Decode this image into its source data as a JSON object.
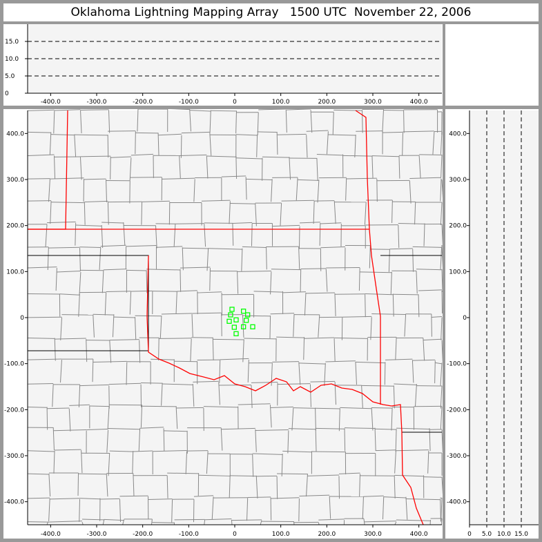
{
  "title": "Oklahoma Lightning Mapping Array   1500 UTC  November 22, 2006",
  "colors": {
    "state_border": "#ff0000",
    "county_border": "#888888",
    "source_marker": "#00ff00",
    "plot_bg": "#f4f4f4",
    "frame": "#999999"
  },
  "chart_data": [
    {
      "panel": "plan-view",
      "type": "scatter",
      "xlim": [
        -450,
        450
      ],
      "ylim": [
        -450,
        450
      ],
      "x_ticks": [
        "-400.0",
        "-300.0",
        "-200.0",
        "-100.0",
        "0",
        "100.0",
        "200.0",
        "300.0",
        "400.0"
      ],
      "y_ticks": [
        "400.0",
        "300.0",
        "200.0",
        "100.0",
        "0",
        "-100.0",
        "-200.0",
        "-300.0",
        "-400.0"
      ],
      "points": [
        {
          "x": -6,
          "y": 18
        },
        {
          "x": -9,
          "y": 6
        },
        {
          "x": 19,
          "y": 14
        },
        {
          "x": 28,
          "y": 6
        },
        {
          "x": -12,
          "y": -8
        },
        {
          "x": 3,
          "y": -5
        },
        {
          "x": 25,
          "y": -6
        },
        {
          "x": -1,
          "y": -21
        },
        {
          "x": 19,
          "y": -20
        },
        {
          "x": 39,
          "y": -20
        },
        {
          "x": 3,
          "y": -35
        }
      ]
    },
    {
      "panel": "east-west-altitude",
      "type": "scatter",
      "xlim": [
        -450,
        450
      ],
      "ylim": [
        0,
        20
      ],
      "x_ticks": [
        "-400.0",
        "-300.0",
        "-200.0",
        "-100.0",
        "0",
        "100.0",
        "200.0",
        "300.0",
        "400.0"
      ],
      "y_ticks": [
        "15.0",
        "10.0",
        "5.0",
        "0"
      ],
      "points": []
    },
    {
      "panel": "altitude-north-south",
      "type": "scatter",
      "xlim": [
        0,
        20
      ],
      "ylim": [
        -450,
        450
      ],
      "x_ticks": [
        "0",
        "5.0",
        "10.0",
        "15.0"
      ],
      "y_ticks": [
        "400.0",
        "300.0",
        "200.0",
        "100.0",
        "0",
        "-100.0",
        "-200.0",
        "-300.0",
        "-400.0"
      ],
      "points": []
    }
  ]
}
